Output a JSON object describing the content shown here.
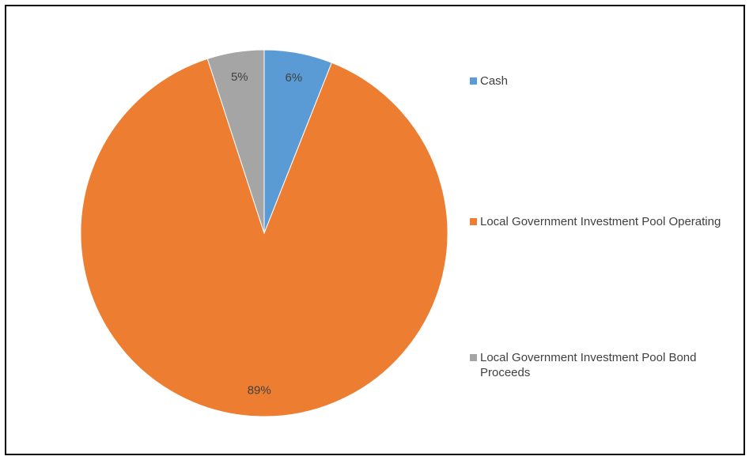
{
  "chart_data": {
    "type": "pie",
    "title": "",
    "slices": [
      {
        "label": "Cash",
        "value": 6,
        "data_label": "6%",
        "color": "#5B9BD5"
      },
      {
        "label": "Local Government Investment Pool Operating",
        "value": 89,
        "data_label": "89%",
        "color": "#ED7D31"
      },
      {
        "label": "Local Government Investment Pool Bond Proceeds",
        "value": 5,
        "data_label": "5%",
        "color": "#A5A5A5"
      }
    ],
    "legend_position": "right"
  }
}
